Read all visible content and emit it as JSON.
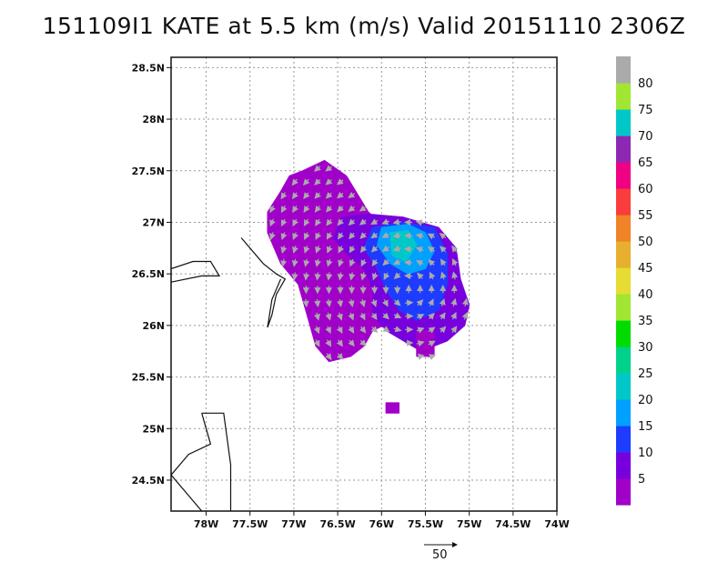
{
  "title": "151109I1 KATE at 5.5 km (m/s) Valid 20151110 2306Z",
  "chart_data": {
    "type": "heatmap",
    "title": "151109I1 KATE at 5.5 km (m/s) Valid 20151110 2306Z",
    "xlim": [
      -78.4,
      -74.0
    ],
    "ylim": [
      24.2,
      28.6
    ],
    "x_ticks": [
      {
        "v": -78.0,
        "label": "78W"
      },
      {
        "v": -77.5,
        "label": "77.5W"
      },
      {
        "v": -77.0,
        "label": "77W"
      },
      {
        "v": -76.5,
        "label": "76.5W"
      },
      {
        "v": -76.0,
        "label": "76W"
      },
      {
        "v": -75.5,
        "label": "75.5W"
      },
      {
        "v": -75.0,
        "label": "75W"
      },
      {
        "v": -74.5,
        "label": "74.5W"
      },
      {
        "v": -74.0,
        "label": "74W"
      }
    ],
    "y_ticks": [
      {
        "v": 24.5,
        "label": "24.5N"
      },
      {
        "v": 25.0,
        "label": "25N"
      },
      {
        "v": 25.5,
        "label": "25.5N"
      },
      {
        "v": 26.0,
        "label": "26N"
      },
      {
        "v": 26.5,
        "label": "26.5N"
      },
      {
        "v": 27.0,
        "label": "27N"
      },
      {
        "v": 27.5,
        "label": "27.5N"
      },
      {
        "v": 28.0,
        "label": "28N"
      },
      {
        "v": 28.5,
        "label": "28.5N"
      }
    ],
    "grid": true,
    "colorbar": {
      "labels": [
        "5",
        "10",
        "15",
        "20",
        "25",
        "30",
        "35",
        "40",
        "45",
        "50",
        "55",
        "60",
        "65",
        "70",
        "75",
        "80"
      ],
      "colors": [
        "#a000c8",
        "#7800dc",
        "#1e3cff",
        "#00a0ff",
        "#00c8c8",
        "#00d28c",
        "#00dc00",
        "#a0e632",
        "#e6dc32",
        "#e6af2d",
        "#f08228",
        "#fa3c3c",
        "#f00082",
        "#8c28b4",
        "#00c8c8",
        "#a0e632",
        "#aaaaaa"
      ]
    },
    "wind_field_regions": [
      {
        "name": "outer purple region",
        "speed": 5,
        "polygon": [
          [
            -77.05,
            27.45
          ],
          [
            -76.9,
            27.5
          ],
          [
            -76.65,
            27.6
          ],
          [
            -76.4,
            27.45
          ],
          [
            -76.15,
            27.1
          ],
          [
            -75.95,
            26.95
          ],
          [
            -75.75,
            26.7
          ],
          [
            -75.65,
            26.45
          ],
          [
            -75.7,
            26.2
          ],
          [
            -75.85,
            26.05
          ],
          [
            -76.1,
            25.95
          ],
          [
            -76.2,
            25.8
          ],
          [
            -76.35,
            25.7
          ],
          [
            -76.6,
            25.65
          ],
          [
            -76.75,
            25.8
          ],
          [
            -76.85,
            26.1
          ],
          [
            -76.95,
            26.4
          ],
          [
            -77.15,
            26.6
          ],
          [
            -77.3,
            26.9
          ],
          [
            -77.3,
            27.1
          ],
          [
            -77.15,
            27.3
          ]
        ]
      },
      {
        "name": "blue band",
        "speed": 10,
        "polygon": [
          [
            -76.45,
            27.05
          ],
          [
            -76.15,
            27.08
          ],
          [
            -75.75,
            27.05
          ],
          [
            -75.35,
            26.95
          ],
          [
            -75.15,
            26.75
          ],
          [
            -75.1,
            26.45
          ],
          [
            -75.0,
            26.2
          ],
          [
            -75.05,
            26.0
          ],
          [
            -75.25,
            25.85
          ],
          [
            -75.55,
            25.75
          ],
          [
            -75.95,
            25.95
          ],
          [
            -76.1,
            26.1
          ],
          [
            -76.1,
            26.35
          ],
          [
            -76.2,
            26.55
          ],
          [
            -76.4,
            26.7
          ],
          [
            -76.55,
            26.85
          ]
        ]
      },
      {
        "name": "light blue core",
        "speed": 15,
        "polygon": [
          [
            -76.1,
            26.95
          ],
          [
            -75.75,
            27.0
          ],
          [
            -75.4,
            26.95
          ],
          [
            -75.25,
            26.7
          ],
          [
            -75.25,
            26.4
          ],
          [
            -75.35,
            26.15
          ],
          [
            -75.6,
            26.05
          ],
          [
            -75.8,
            26.15
          ],
          [
            -75.95,
            26.35
          ],
          [
            -76.05,
            26.55
          ],
          [
            -76.2,
            26.75
          ]
        ]
      },
      {
        "name": "teal core",
        "speed": 20,
        "polygon": [
          [
            -76.0,
            26.95
          ],
          [
            -75.7,
            26.98
          ],
          [
            -75.5,
            26.9
          ],
          [
            -75.4,
            26.72
          ],
          [
            -75.5,
            26.55
          ],
          [
            -75.7,
            26.5
          ],
          [
            -75.9,
            26.6
          ],
          [
            -76.05,
            26.78
          ]
        ]
      },
      {
        "name": "green patch",
        "speed": 25,
        "polygon": [
          [
            -75.9,
            26.9
          ],
          [
            -75.7,
            26.92
          ],
          [
            -75.6,
            26.78
          ],
          [
            -75.72,
            26.62
          ],
          [
            -75.88,
            26.68
          ]
        ]
      },
      {
        "name": "southern fragment",
        "speed": 5,
        "polygon": [
          [
            -75.6,
            25.95
          ],
          [
            -75.4,
            25.95
          ],
          [
            -75.4,
            25.7
          ],
          [
            -75.6,
            25.7
          ]
        ]
      },
      {
        "name": "isolated cell",
        "speed": 5,
        "polygon": [
          [
            -75.95,
            25.25
          ],
          [
            -75.8,
            25.25
          ],
          [
            -75.8,
            25.15
          ],
          [
            -75.95,
            25.15
          ]
        ]
      }
    ],
    "vector_scale": {
      "label": "50",
      "value": 50
    },
    "coastlines": [
      [
        [
          -78.4,
          26.55
        ],
        [
          -78.15,
          26.62
        ],
        [
          -77.95,
          26.62
        ],
        [
          -77.85,
          26.48
        ],
        [
          -78.05,
          26.48
        ],
        [
          -78.4,
          26.42
        ]
      ],
      [
        [
          -77.6,
          26.85
        ],
        [
          -77.35,
          26.6
        ],
        [
          -77.2,
          26.5
        ],
        [
          -77.1,
          26.45
        ],
        [
          -77.2,
          26.3
        ],
        [
          -77.25,
          26.1
        ],
        [
          -77.3,
          25.98
        ],
        [
          -77.25,
          26.25
        ],
        [
          -77.15,
          26.45
        ]
      ],
      [
        [
          -78.05,
          25.15
        ],
        [
          -77.8,
          25.15
        ],
        [
          -77.72,
          24.65
        ],
        [
          -77.72,
          24.2
        ]
      ],
      [
        [
          -78.05,
          25.15
        ],
        [
          -77.95,
          24.85
        ],
        [
          -78.2,
          24.75
        ],
        [
          -78.4,
          24.55
        ]
      ],
      [
        [
          -78.4,
          24.55
        ],
        [
          -78.2,
          24.35
        ],
        [
          -78.05,
          24.2
        ]
      ]
    ]
  }
}
